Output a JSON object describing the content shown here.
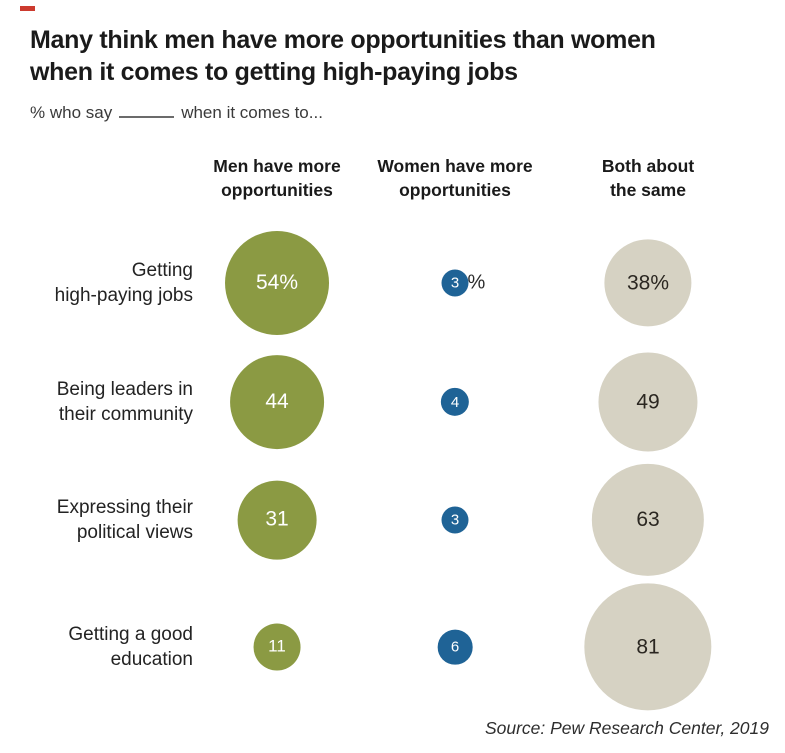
{
  "page": {
    "background": "#ffffff",
    "brand_dash_color": "#cc3a2e"
  },
  "header": {
    "title_line1": "Many think men have more opportunities than women",
    "title_line2": "when it comes to getting high-paying jobs",
    "subtitle_prefix": "% who say",
    "subtitle_suffix": "when it comes to..."
  },
  "columns": [
    {
      "label": "Men have  more\nopportunities",
      "color": "#8b9a43",
      "text_color": "#ffffff"
    },
    {
      "label": "Women have more\nopportunities",
      "color": "#1f6396",
      "text_color": "#ffffff"
    },
    {
      "label": "Both about\nthe same",
      "color": "#d6d2c3",
      "text_color": "#2b2721"
    }
  ],
  "rows": [
    {
      "label": "Getting\nhigh-paying jobs",
      "bubbles": [
        {
          "value": 54,
          "display": "54%"
        },
        {
          "value": 3,
          "display": "3",
          "outside_suffix": "%"
        },
        {
          "value": 38,
          "display": "38%"
        }
      ]
    },
    {
      "label": "Being leaders in\ntheir community",
      "bubbles": [
        {
          "value": 44,
          "display": "44"
        },
        {
          "value": 4,
          "display": "4"
        },
        {
          "value": 49,
          "display": "49"
        }
      ]
    },
    {
      "label": "Expressing their\npolitical views",
      "bubbles": [
        {
          "value": 31,
          "display": "31"
        },
        {
          "value": 3,
          "display": "3"
        },
        {
          "value": 63,
          "display": "63"
        }
      ]
    },
    {
      "label": "Getting a good\neducation",
      "bubbles": [
        {
          "value": 11,
          "display": "11"
        },
        {
          "value": 6,
          "display": "6"
        },
        {
          "value": 81,
          "display": "81"
        }
      ]
    }
  ],
  "footer": {
    "source": "Source: Pew Research Center, 2019"
  },
  "chart_data": {
    "type": "bubble",
    "title": "Many think men have more opportunities than women when it comes to getting high-paying jobs",
    "subtitle": "% who say ______ when it comes to...",
    "categories": [
      "Getting high-paying jobs",
      "Being leaders in their community",
      "Expressing their political views",
      "Getting a good education"
    ],
    "series": [
      {
        "name": "Men have more opportunities",
        "color": "#8b9a43",
        "values": [
          54,
          44,
          31,
          11
        ]
      },
      {
        "name": "Women have more opportunities",
        "color": "#1f6396",
        "values": [
          3,
          4,
          3,
          6
        ]
      },
      {
        "name": "Both about the same",
        "color": "#d6d2c3",
        "values": [
          38,
          49,
          63,
          81
        ]
      }
    ],
    "units": "percent",
    "data_labels_shown": true,
    "first_row_percent_sign": true,
    "legend_position": "column headers above bubbles",
    "grid": false,
    "source": "Source: Pew Research Center, 2019"
  }
}
